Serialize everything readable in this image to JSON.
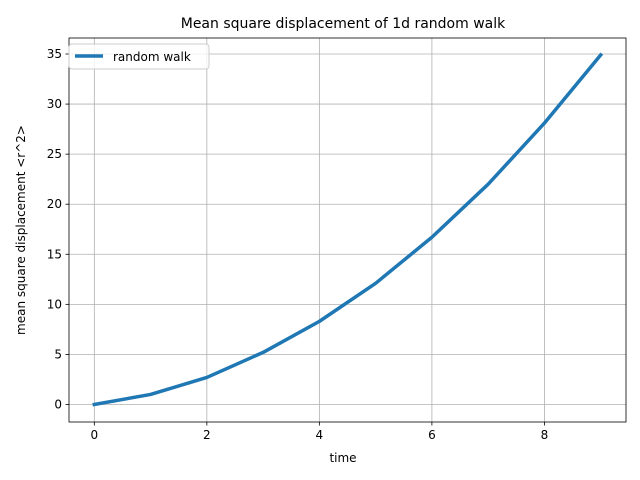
{
  "chart_data": {
    "type": "line",
    "title": "Mean square displacement of 1d random walk",
    "xlabel": "time",
    "ylabel": "mean square displacement <r^2>",
    "xlim": [
      -0.45,
      9.45
    ],
    "ylim": [
      -1.75,
      36.6
    ],
    "xticks": [
      0,
      2,
      4,
      6,
      8
    ],
    "yticks": [
      0,
      5,
      10,
      15,
      20,
      25,
      30,
      35
    ],
    "grid": true,
    "legend_position": "upper-left",
    "series": [
      {
        "name": "random walk",
        "color": "#1f77b4",
        "x": [
          0,
          1,
          2,
          3,
          4,
          5,
          6,
          7,
          8,
          9
        ],
        "y": [
          0,
          1.0,
          2.7,
          5.2,
          8.3,
          12.1,
          16.7,
          22.0,
          28.1,
          34.9
        ]
      }
    ]
  }
}
